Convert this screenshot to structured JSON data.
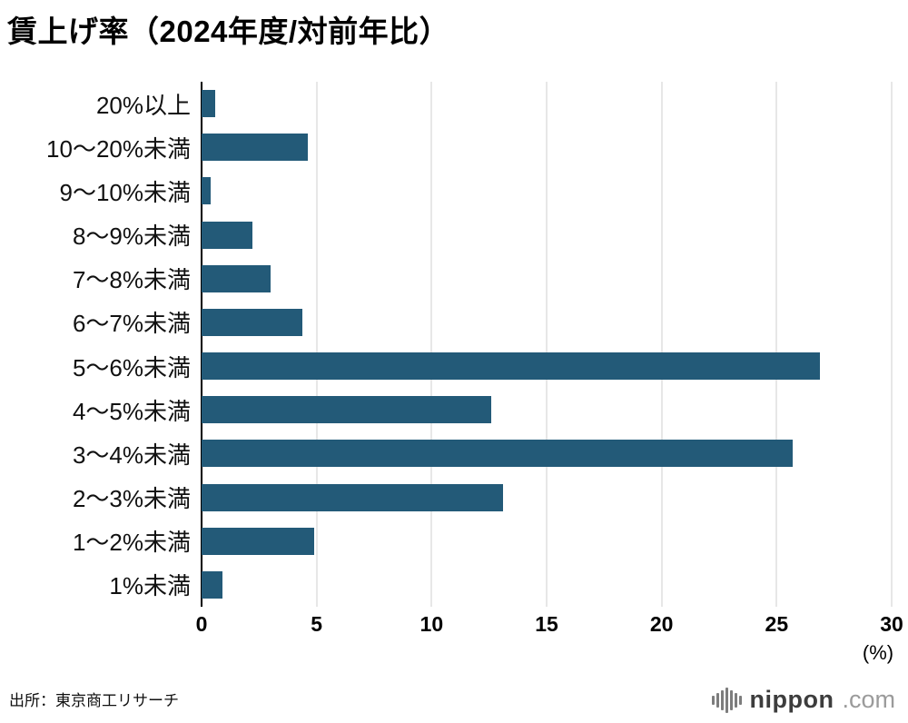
{
  "chart": {
    "title": "賃上げ率（2024年度/対前年比）",
    "unit": "(%)",
    "source": "出所：東京商工リサーチ"
  },
  "chart_data": {
    "type": "bar",
    "orientation": "horizontal",
    "title": "賃上げ率（2024年度/対前年比）",
    "categories": [
      "20%以上",
      "10〜20%未満",
      "9〜10%未満",
      "8〜9%未満",
      "7〜8%未満",
      "6〜7%未満",
      "5〜6%未満",
      "4〜5%未満",
      "3〜4%未満",
      "2〜3%未満",
      "1〜2%未満",
      "1%未満"
    ],
    "values": [
      0.6,
      4.6,
      0.4,
      2.2,
      3.0,
      4.4,
      26.9,
      12.6,
      25.7,
      13.1,
      4.9,
      0.9
    ],
    "xlabel": "(%)",
    "ylabel": "",
    "xlim": [
      0,
      30
    ],
    "xticks": [
      0,
      5,
      10,
      15,
      20,
      25,
      30
    ],
    "bar_color": "#235A78",
    "gridline_color": "#cfcfcf",
    "zero_axis_color": "#000000",
    "grid": true,
    "legend": "none"
  },
  "logo": {
    "icon": "soundwave-icon",
    "brand": "nippon",
    "tld": ".com"
  }
}
